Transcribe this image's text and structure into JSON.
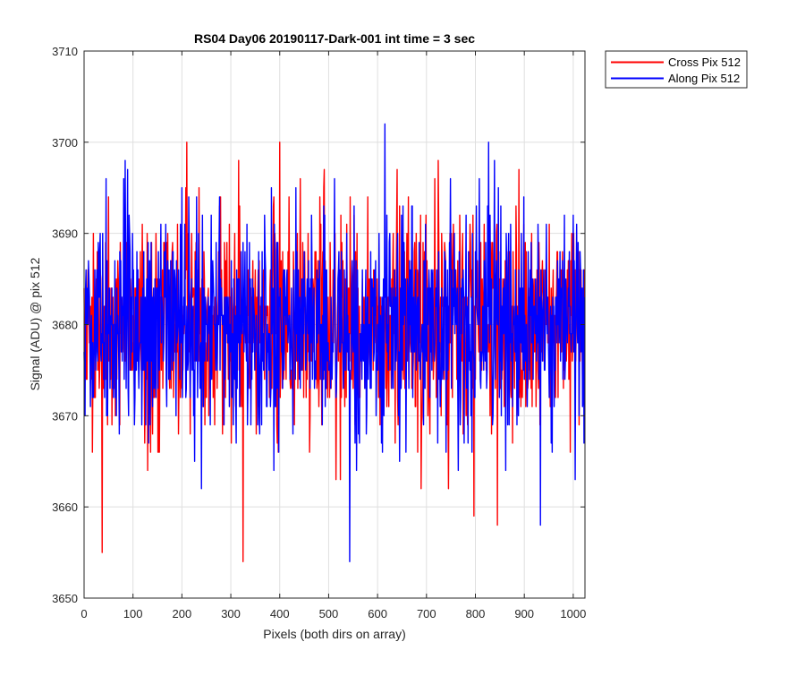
{
  "colors": {
    "cross": "#ff0000",
    "along": "#0000ff",
    "background": "#ffffff",
    "grid": "#dfdfdf",
    "axis": "#262626"
  },
  "chart_data": {
    "type": "line",
    "title": "RS04 Day06 20190117-Dark-001 int time = 3 sec",
    "xlabel": "Pixels (both dirs on array)",
    "ylabel": "Signal (ADU) @ pix 512",
    "xlim": [
      0,
      1024
    ],
    "ylim": [
      3650,
      3710
    ],
    "xticks": [
      0,
      100,
      200,
      300,
      400,
      500,
      600,
      700,
      800,
      900,
      1000
    ],
    "yticks": [
      3650,
      3660,
      3670,
      3680,
      3690,
      3700,
      3710
    ],
    "grid": true,
    "legend_position": "outside-top-right",
    "series": [
      {
        "name": "Cross Pix 512",
        "color": "#ff0000",
        "mean": 3680,
        "approx_std": 6,
        "n_points": 1024,
        "extremes": [
          {
            "x": 37,
            "y": 3655
          },
          {
            "x": 210,
            "y": 3700
          },
          {
            "x": 325,
            "y": 3654
          },
          {
            "x": 400,
            "y": 3700
          },
          {
            "x": 797,
            "y": 3659
          },
          {
            "x": 845,
            "y": 3658
          }
        ]
      },
      {
        "name": "Along Pix 512",
        "color": "#0000ff",
        "mean": 3680,
        "approx_std": 6,
        "n_points": 1024,
        "extremes": [
          {
            "x": 543,
            "y": 3654
          },
          {
            "x": 615,
            "y": 3702
          },
          {
            "x": 827,
            "y": 3700
          },
          {
            "x": 933,
            "y": 3658
          }
        ]
      }
    ]
  }
}
